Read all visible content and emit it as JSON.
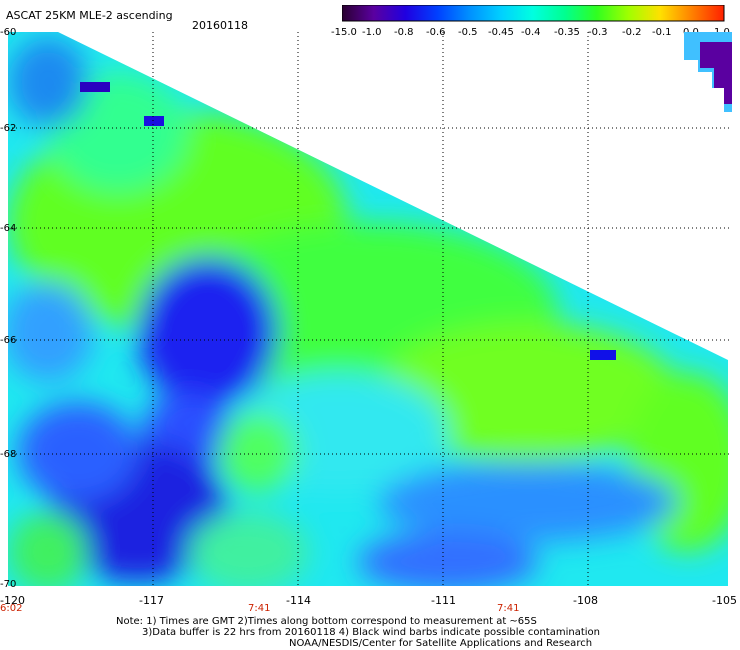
{
  "header": {
    "title": "ASCAT 25KM MLE-2 ascending",
    "date": "20160118"
  },
  "colorbar": {
    "labels": [
      "-15.0",
      "-1.0",
      "-0.8",
      "-0.6",
      "-0.5",
      "-0.45",
      "-0.4",
      "-0.35",
      "-0.3",
      "-0.2",
      "-0.1",
      "0.0",
      "1.0"
    ],
    "colors": [
      "#2a0030",
      "#5a00a0",
      "#2000e0",
      "#0040ff",
      "#0090ff",
      "#00d0ff",
      "#00ffe0",
      "#00ff90",
      "#30ff20",
      "#a0ff00",
      "#ffe000",
      "#ff8000",
      "#ff2000"
    ]
  },
  "axes": {
    "lat_labels": [
      "-60",
      "-62",
      "-64",
      "-66",
      "-68",
      "-70"
    ],
    "lon_labels": [
      "-120",
      "-117",
      "-114",
      "-111",
      "-108",
      "-105"
    ],
    "time_labels": [
      "6:02",
      "7:41",
      "7:41"
    ]
  },
  "notes": {
    "line1": "Note: 1) Times are GMT 2)Times along bottom correspond to measurement at ~65S",
    "line2": "3)Data buffer is 22 hrs from 20160118 4) Black wind barbs indicate possible contamination",
    "line3": "NOAA/NESDIS/Center for Satellite Applications and Research"
  }
}
